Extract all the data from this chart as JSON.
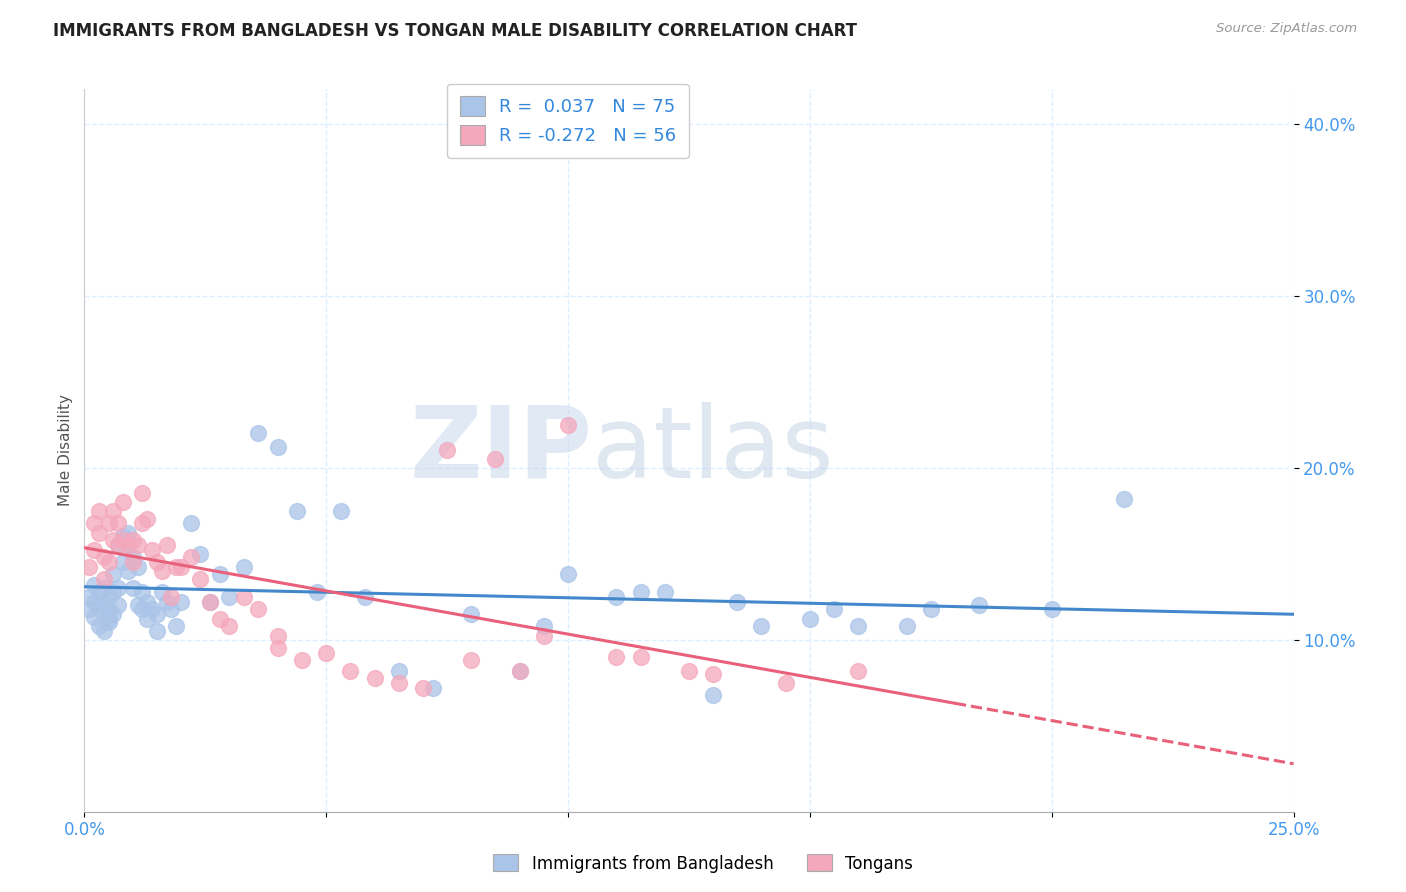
{
  "title": "IMMIGRANTS FROM BANGLADESH VS TONGAN MALE DISABILITY CORRELATION CHART",
  "source": "Source: ZipAtlas.com",
  "ylabel": "Male Disability",
  "xlim": [
    0.0,
    0.25
  ],
  "ylim": [
    0.0,
    0.42
  ],
  "R_blue": 0.037,
  "N_blue": 75,
  "R_pink": -0.272,
  "N_pink": 56,
  "blue_scatter_color": "#aac4e8",
  "pink_scatter_color": "#f4a8bc",
  "blue_line_color": "#4488cc",
  "pink_line_color": "#e8607a",
  "accent_color": "#3388dd",
  "dark_text": "#222222",
  "legend_label_blue": "Immigrants from Bangladesh",
  "legend_label_pink": "Tongans",
  "watermark_zip": "ZIP",
  "watermark_atlas": "atlas",
  "grid_color": "#ddeeff",
  "tick_color": "#4499ee",
  "blue_x": [
    0.001,
    0.001,
    0.002,
    0.002,
    0.002,
    0.003,
    0.003,
    0.003,
    0.004,
    0.004,
    0.004,
    0.005,
    0.005,
    0.005,
    0.005,
    0.006,
    0.006,
    0.006,
    0.007,
    0.007,
    0.007,
    0.008,
    0.008,
    0.008,
    0.009,
    0.009,
    0.009,
    0.01,
    0.01,
    0.011,
    0.011,
    0.012,
    0.012,
    0.013,
    0.013,
    0.014,
    0.015,
    0.015,
    0.016,
    0.017,
    0.018,
    0.019,
    0.02,
    0.022,
    0.024,
    0.026,
    0.028,
    0.03,
    0.033,
    0.036,
    0.04,
    0.044,
    0.048,
    0.053,
    0.058,
    0.065,
    0.072,
    0.08,
    0.09,
    0.1,
    0.11,
    0.12,
    0.13,
    0.14,
    0.155,
    0.17,
    0.185,
    0.2,
    0.215,
    0.15,
    0.095,
    0.115,
    0.135,
    0.16,
    0.175
  ],
  "blue_y": [
    0.118,
    0.125,
    0.113,
    0.122,
    0.132,
    0.108,
    0.118,
    0.128,
    0.105,
    0.12,
    0.13,
    0.11,
    0.118,
    0.125,
    0.112,
    0.115,
    0.128,
    0.138,
    0.12,
    0.13,
    0.155,
    0.158,
    0.145,
    0.16,
    0.14,
    0.155,
    0.162,
    0.13,
    0.148,
    0.142,
    0.12,
    0.128,
    0.118,
    0.122,
    0.112,
    0.118,
    0.115,
    0.105,
    0.128,
    0.122,
    0.118,
    0.108,
    0.122,
    0.168,
    0.15,
    0.122,
    0.138,
    0.125,
    0.142,
    0.22,
    0.212,
    0.175,
    0.128,
    0.175,
    0.125,
    0.082,
    0.072,
    0.115,
    0.082,
    0.138,
    0.125,
    0.128,
    0.068,
    0.108,
    0.118,
    0.108,
    0.12,
    0.118,
    0.182,
    0.112,
    0.108,
    0.128,
    0.122,
    0.108,
    0.118
  ],
  "pink_x": [
    0.001,
    0.002,
    0.002,
    0.003,
    0.003,
    0.004,
    0.004,
    0.005,
    0.005,
    0.006,
    0.006,
    0.007,
    0.007,
    0.008,
    0.008,
    0.009,
    0.01,
    0.01,
    0.011,
    0.012,
    0.012,
    0.013,
    0.014,
    0.015,
    0.016,
    0.017,
    0.018,
    0.019,
    0.02,
    0.022,
    0.024,
    0.026,
    0.028,
    0.03,
    0.033,
    0.036,
    0.04,
    0.045,
    0.05,
    0.06,
    0.07,
    0.08,
    0.09,
    0.1,
    0.115,
    0.13,
    0.145,
    0.16,
    0.04,
    0.055,
    0.065,
    0.075,
    0.085,
    0.095,
    0.11,
    0.125
  ],
  "pink_y": [
    0.142,
    0.152,
    0.168,
    0.162,
    0.175,
    0.135,
    0.148,
    0.145,
    0.168,
    0.158,
    0.175,
    0.155,
    0.168,
    0.18,
    0.158,
    0.155,
    0.145,
    0.158,
    0.155,
    0.185,
    0.168,
    0.17,
    0.152,
    0.145,
    0.14,
    0.155,
    0.125,
    0.142,
    0.142,
    0.148,
    0.135,
    0.122,
    0.112,
    0.108,
    0.125,
    0.118,
    0.102,
    0.088,
    0.092,
    0.078,
    0.072,
    0.088,
    0.082,
    0.225,
    0.09,
    0.08,
    0.075,
    0.082,
    0.095,
    0.082,
    0.075,
    0.21,
    0.205,
    0.102,
    0.09,
    0.082
  ]
}
